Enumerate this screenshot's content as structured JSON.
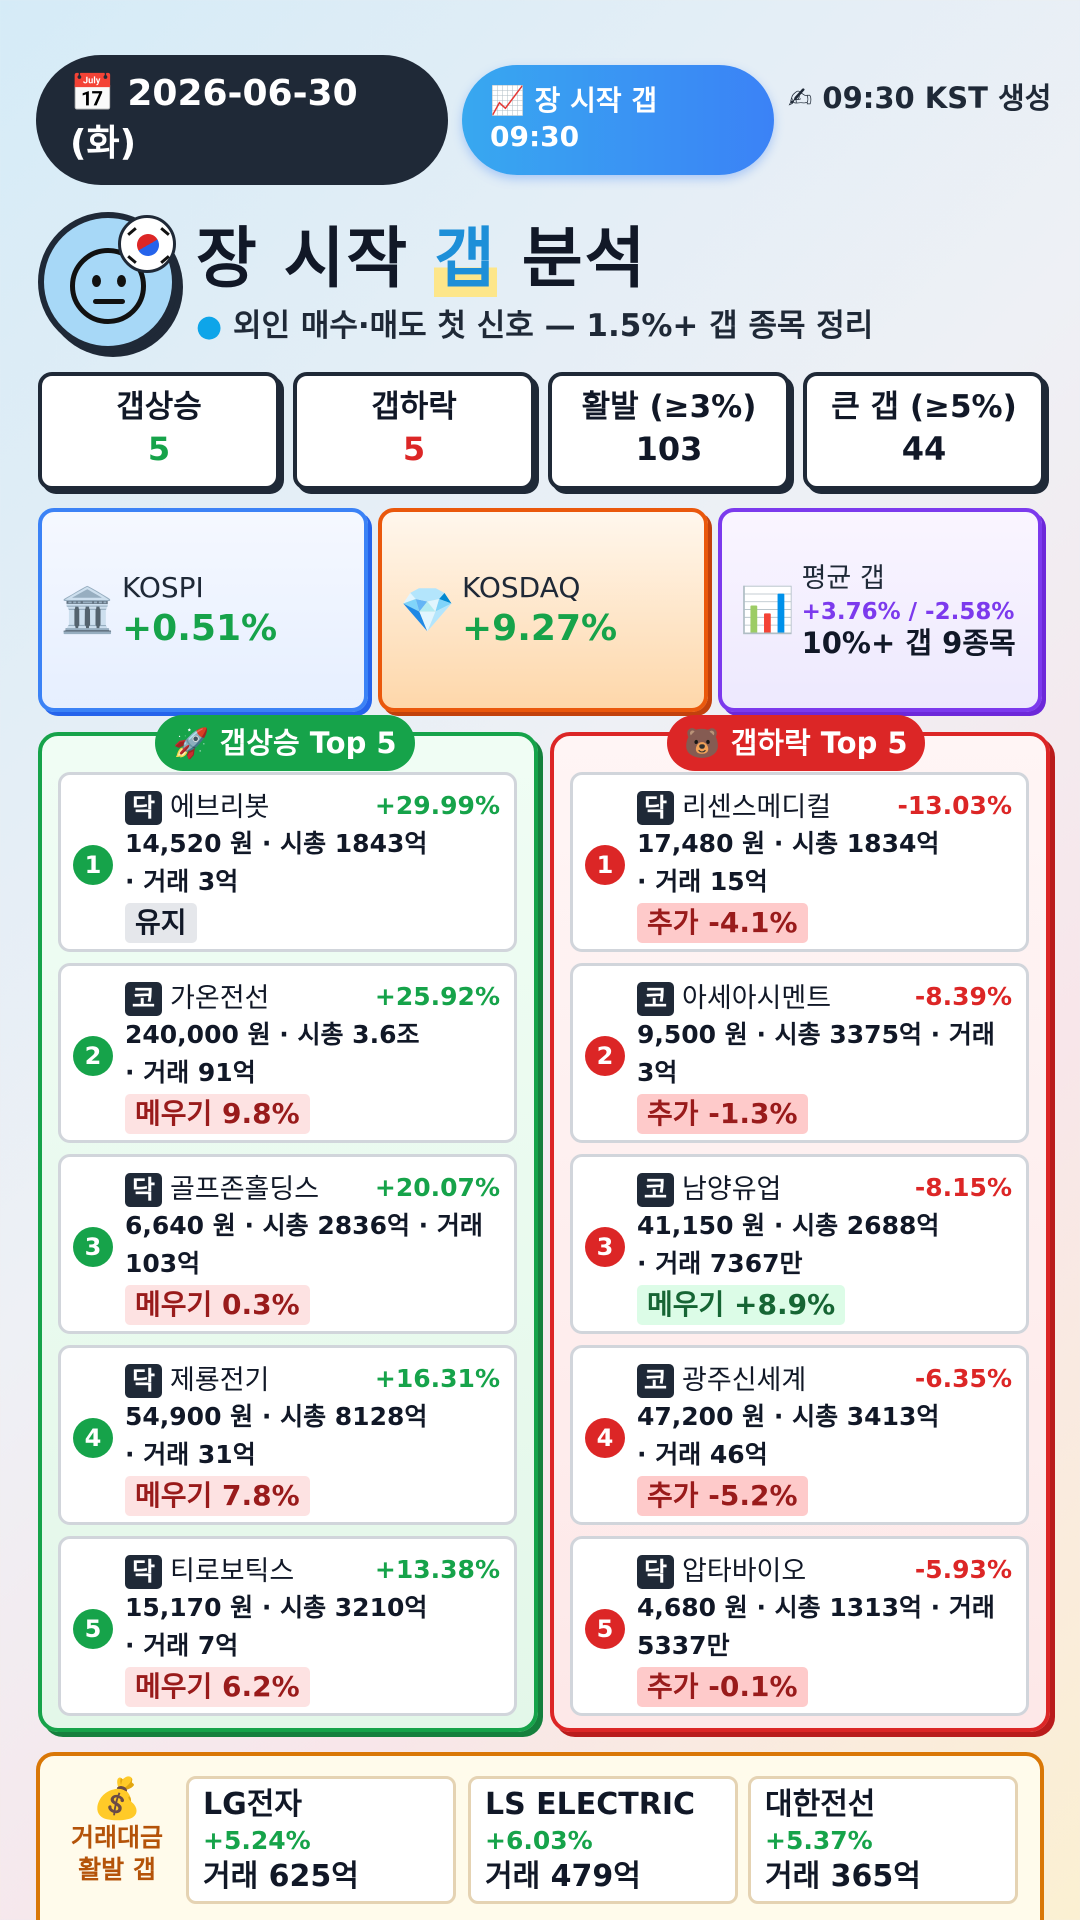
{
  "header": {
    "date": "📅 2026-06-30 (화)",
    "session_pill": "📈 장 시작 갭 09:30",
    "generated": "✍ 09:30 KST 생성"
  },
  "title": {
    "prefix": "장 시작 ",
    "highlight": "갭",
    "suffix": " 분석",
    "subtitle": "외인 매수·매도 첫 신호 — 1.5%+ 갭 종목 정리"
  },
  "stats": [
    {
      "label": "갭상승",
      "value": "5",
      "color": "#16a34a"
    },
    {
      "label": "갭하락",
      "value": "5",
      "color": "#dc2626"
    },
    {
      "label": "활발 (≥3%)",
      "value": "103",
      "color": "#111827"
    },
    {
      "label": "큰 갭 (≥5%)",
      "value": "44",
      "color": "#111827"
    }
  ],
  "indices": {
    "kospi": {
      "icon": "🏛️",
      "name": "KOSPI",
      "change": "+0.51%"
    },
    "kosdaq": {
      "icon": "💎",
      "name": "KOSDAQ",
      "change": "+9.27%"
    },
    "avg": {
      "icon": "📊",
      "label": "평균 갭",
      "values": "+3.76% / -2.58%",
      "note": "10%+ 갭 9종목"
    }
  },
  "up_panel": {
    "title": "🚀 갭상승 Top 5",
    "items": [
      {
        "rank": "1",
        "market": "닥",
        "name": "에브리봇",
        "change": "+29.99%",
        "line1": "14,520 원 · 시총 1843억",
        "line2": "· 거래 3억",
        "tag": "유지",
        "tag_type": "keep"
      },
      {
        "rank": "2",
        "market": "코",
        "name": "가온전선",
        "change": "+25.92%",
        "line1": "240,000 원 · 시총 3.6조",
        "line2": "· 거래 91억",
        "tag": "메우기 9.8%",
        "tag_type": "fillneg"
      },
      {
        "rank": "3",
        "market": "닥",
        "name": "골프존홀딩스",
        "change": "+20.07%",
        "line1": "6,640 원 · 시총 2836억 · 거래",
        "line2": "103억",
        "tag": "메우기 0.3%",
        "tag_type": "fillneg"
      },
      {
        "rank": "4",
        "market": "닥",
        "name": "제룡전기",
        "change": "+16.31%",
        "line1": "54,900 원 · 시총 8128억",
        "line2": "· 거래 31억",
        "tag": "메우기 7.8%",
        "tag_type": "fillneg"
      },
      {
        "rank": "5",
        "market": "닥",
        "name": "티로보틱스",
        "change": "+13.38%",
        "line1": "15,170 원 · 시총 3210억",
        "line2": "· 거래 7억",
        "tag": "메우기 6.2%",
        "tag_type": "fillneg"
      }
    ]
  },
  "down_panel": {
    "title": "🐻 갭하락 Top 5",
    "items": [
      {
        "rank": "1",
        "market": "닥",
        "name": "리센스메디컬",
        "change": "-13.03%",
        "line1": "17,480 원 · 시총 1834억",
        "line2": "· 거래 15억",
        "tag": "추가 -4.1%",
        "tag_type": "add"
      },
      {
        "rank": "2",
        "market": "코",
        "name": "아세아시멘트",
        "change": "-8.39%",
        "line1": "9,500 원 · 시총 3375억 · 거래",
        "line2": "3억",
        "tag": "추가 -1.3%",
        "tag_type": "add"
      },
      {
        "rank": "3",
        "market": "코",
        "name": "남양유업",
        "change": "-8.15%",
        "line1": "41,150 원 · 시총 2688억",
        "line2": "· 거래 7367만",
        "tag": "메우기 +8.9%",
        "tag_type": "fillpos"
      },
      {
        "rank": "4",
        "market": "코",
        "name": "광주신세계",
        "change": "-6.35%",
        "line1": "47,200 원 · 시총 3413억",
        "line2": "· 거래 46억",
        "tag": "추가 -5.2%",
        "tag_type": "add"
      },
      {
        "rank": "5",
        "market": "닥",
        "name": "압타바이오",
        "change": "-5.93%",
        "line1": "4,680 원 · 시총 1313억 · 거래",
        "line2": "5337만",
        "tag": "추가 -0.1%",
        "tag_type": "add"
      }
    ]
  },
  "trading": {
    "icon": "💰",
    "label1": "거래대금",
    "label2": "활발 갭",
    "cards": [
      {
        "name": "LG전자",
        "change": "+5.24%",
        "volume": "거래 625억"
      },
      {
        "name": "LS ELECTRIC",
        "change": "+6.03%",
        "volume": "거래 479억"
      },
      {
        "name": "대한전선",
        "change": "+5.37%",
        "volume": "거래 365억"
      }
    ]
  },
  "colors": {
    "up": "#16a34a",
    "down": "#dc2626",
    "dark": "#1f2937",
    "accent": "#3b82f6"
  }
}
